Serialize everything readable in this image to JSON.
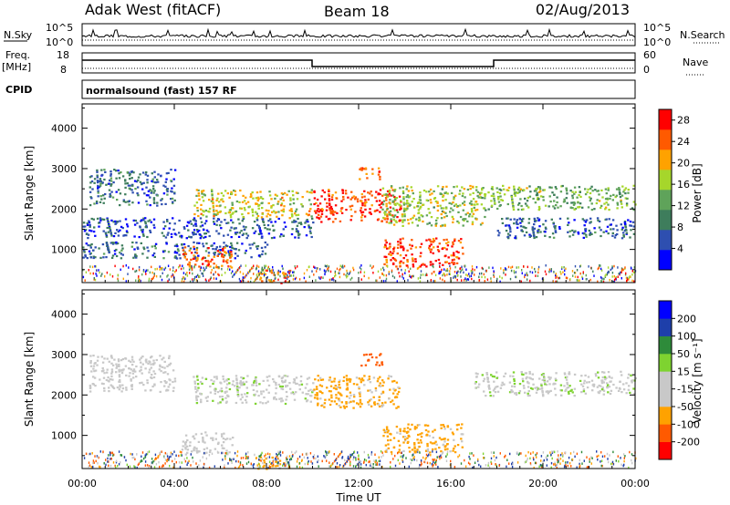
{
  "header": {
    "station": "Adak West (fitACF)",
    "beam": "Beam 18",
    "date": "02/Aug/2013"
  },
  "status_panels": {
    "nsky_label": "N.Sky",
    "nsearch_label": "N.Search",
    "noise_ticks": [
      "10^5",
      "10^0"
    ],
    "freq_label": "Freq.",
    "freq_unit": "[MHz]",
    "freq_ticks": [
      "18",
      "8"
    ],
    "nave_label": "Nave",
    "nave_ticks": [
      "60",
      "0"
    ],
    "cpid_label": "CPID",
    "cpid_value": "normalsound (fast) 157 RF"
  },
  "chart_data": [
    {
      "type": "heatmap",
      "name": "power",
      "ylabel": "Slant Range [km]",
      "xlabel": "",
      "xlim": [
        "00:00",
        "24:00"
      ],
      "ylim": [
        180,
        4600
      ],
      "yticks": [
        "4000",
        "3000",
        "2000",
        "1000"
      ],
      "colorbar": {
        "label": "Power [dB]",
        "ticks": [
          "28",
          "24",
          "20",
          "16",
          "12",
          "8",
          "4"
        ],
        "range": [
          0,
          30
        ],
        "colors": [
          "#0000ff",
          "#2e4fb0",
          "#3e7d5c",
          "#5fa35a",
          "#a6d62b",
          "#ffa200",
          "#ff5a00",
          "#ff0000"
        ]
      },
      "echo_regions": [
        {
          "t0": 0.3,
          "t1": 4.0,
          "r0": 2100,
          "r1": 3000,
          "level": 8
        },
        {
          "t0": 0.0,
          "t1": 10.0,
          "r0": 1300,
          "r1": 1800,
          "level": 6
        },
        {
          "t0": 0.0,
          "t1": 8.0,
          "r0": 800,
          "r1": 1200,
          "level": 7
        },
        {
          "t0": 4.3,
          "t1": 6.5,
          "r0": 550,
          "r1": 1100,
          "level": 24
        },
        {
          "t0": 4.8,
          "t1": 10.0,
          "r0": 1800,
          "r1": 2500,
          "level": 18
        },
        {
          "t0": 10.0,
          "t1": 13.8,
          "r0": 1700,
          "r1": 2500,
          "level": 26
        },
        {
          "t0": 12.0,
          "t1": 13.0,
          "r0": 2750,
          "r1": 3050,
          "level": 24
        },
        {
          "t0": 13.0,
          "t1": 17.5,
          "r0": 1600,
          "r1": 2600,
          "level": 16
        },
        {
          "t0": 13.0,
          "t1": 16.5,
          "r0": 600,
          "r1": 1300,
          "level": 26
        },
        {
          "t0": 17.0,
          "t1": 24.0,
          "r0": 2000,
          "r1": 2600,
          "level": 14
        },
        {
          "t0": 18.0,
          "t1": 24.0,
          "r0": 1300,
          "r1": 1800,
          "level": 7
        },
        {
          "t0": 7.5,
          "t1": 9.0,
          "r0": 180,
          "r1": 500,
          "level": 22
        }
      ]
    },
    {
      "type": "heatmap",
      "name": "velocity",
      "ylabel": "Slant Range [km]",
      "xlabel": "Time UT",
      "xlim": [
        "00:00",
        "24:00"
      ],
      "ylim": [
        180,
        4600
      ],
      "yticks": [
        "4000",
        "3000",
        "2000",
        "1000"
      ],
      "xticks": [
        "00:00",
        "04:00",
        "08:00",
        "12:00",
        "16:00",
        "20:00",
        "00:00"
      ],
      "colorbar": {
        "label": "Velocity [m s⁻¹]",
        "ticks": [
          "200",
          "100",
          "50",
          "15",
          "-15",
          "-50",
          "-100",
          "-200"
        ],
        "range": [
          -250,
          250
        ],
        "colors": [
          "#ff0000",
          "#ff5a00",
          "#ffa200",
          "#c8c8c8",
          "#c8c8c8",
          "#7ed330",
          "#2e8b3a",
          "#1e3faa",
          "#0000ff"
        ]
      },
      "echo_regions": [
        {
          "t0": 0.3,
          "t1": 4.0,
          "r0": 2100,
          "r1": 3000,
          "velocity": 0
        },
        {
          "t0": 4.8,
          "t1": 10.0,
          "r0": 1800,
          "r1": 2500,
          "velocity": 5
        },
        {
          "t0": 10.0,
          "t1": 13.8,
          "r0": 1700,
          "r1": 2500,
          "velocity": -60
        },
        {
          "t0": 12.0,
          "t1": 13.0,
          "r0": 2750,
          "r1": 3050,
          "velocity": -180
        },
        {
          "t0": 13.0,
          "t1": 16.5,
          "r0": 600,
          "r1": 1300,
          "velocity": -60
        },
        {
          "t0": 4.3,
          "t1": 6.5,
          "r0": 550,
          "r1": 1100,
          "velocity": 0
        },
        {
          "t0": 17.0,
          "t1": 24.0,
          "r0": 2000,
          "r1": 2600,
          "velocity": 5
        },
        {
          "t0": 7.5,
          "t1": 9.0,
          "r0": 180,
          "r1": 500,
          "velocity": -60
        }
      ]
    }
  ]
}
